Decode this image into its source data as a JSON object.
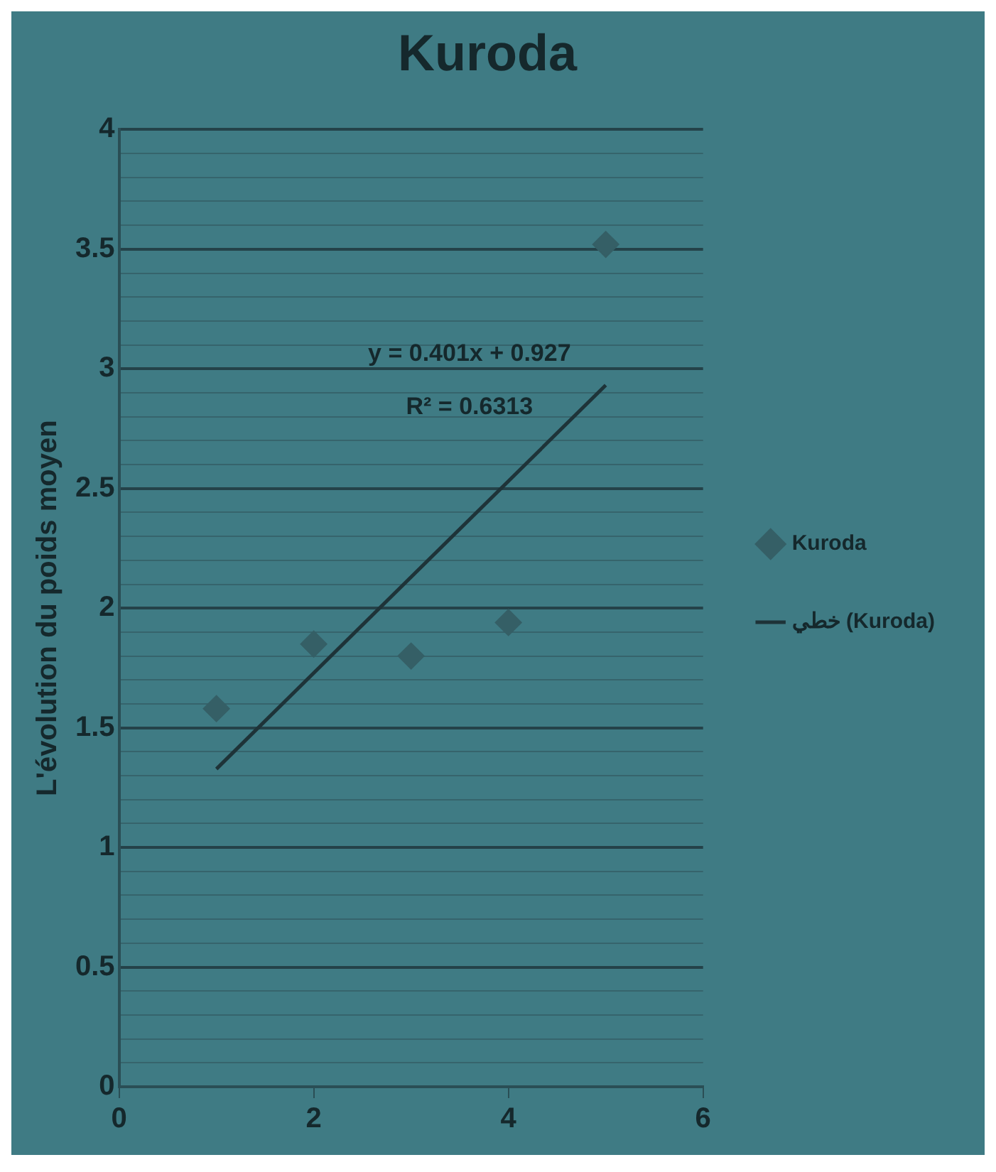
{
  "chart_data": {
    "type": "scatter",
    "title": "Kuroda",
    "ylabel": "L'évolution du poids moyen",
    "x": [
      1,
      2,
      3,
      4,
      5
    ],
    "series": [
      {
        "name": "Kuroda",
        "marker": "diamond",
        "color": "#355f66",
        "values": [
          1.58,
          1.85,
          1.8,
          1.94,
          3.52
        ]
      },
      {
        "name": "خطي (Kuroda)",
        "type": "line",
        "marker": "none",
        "color": "#1e3338",
        "x": [
          1,
          5
        ],
        "values": [
          1.328,
          2.932
        ]
      }
    ],
    "xlim": [
      0,
      6
    ],
    "xticks": [
      0,
      2,
      4,
      6
    ],
    "ylim": [
      0,
      4
    ],
    "yticks": [
      0,
      {
        "value": 0.1,
        "label": null
      },
      {
        "value": 0.2,
        "label": null
      },
      {
        "value": 0.3,
        "label": null
      },
      {
        "value": 0.4,
        "label": null
      },
      0.5,
      {
        "value": 0.6,
        "label": null
      },
      {
        "value": 0.7,
        "label": null
      },
      {
        "value": 0.8,
        "label": null
      },
      {
        "value": 0.9,
        "label": null
      },
      1,
      {
        "value": 1.1,
        "label": null
      },
      {
        "value": 1.2,
        "label": null
      },
      {
        "value": 1.3,
        "label": null
      },
      {
        "value": 1.4,
        "label": null
      },
      1.5,
      {
        "value": 1.6,
        "label": null
      },
      {
        "value": 1.7,
        "label": null
      },
      {
        "value": 1.8,
        "label": null
      },
      {
        "value": 1.9,
        "label": null
      },
      2,
      {
        "value": 2.1,
        "label": null
      },
      {
        "value": 2.2,
        "label": null
      },
      {
        "value": 2.3,
        "label": null
      },
      {
        "value": 2.4,
        "label": null
      },
      2.5,
      {
        "value": 2.6,
        "label": null
      },
      {
        "value": 2.7,
        "label": null
      },
      {
        "value": 2.8,
        "label": null
      },
      {
        "value": 2.9,
        "label": null
      },
      3,
      {
        "value": 3.1,
        "label": null
      },
      {
        "value": 3.2,
        "label": null
      },
      {
        "value": 3.3,
        "label": null
      },
      {
        "value": 3.4,
        "label": null
      },
      3.5,
      {
        "value": 3.6,
        "label": null
      },
      {
        "value": 3.7,
        "label": null
      },
      {
        "value": 3.8,
        "label": null
      },
      {
        "value": 3.9,
        "label": null
      },
      4
    ],
    "annotations": [
      "y = 0.401x + 0.927",
      "R² = 0.6313"
    ],
    "grid": "y",
    "legend": "right",
    "line_style": "solid"
  }
}
